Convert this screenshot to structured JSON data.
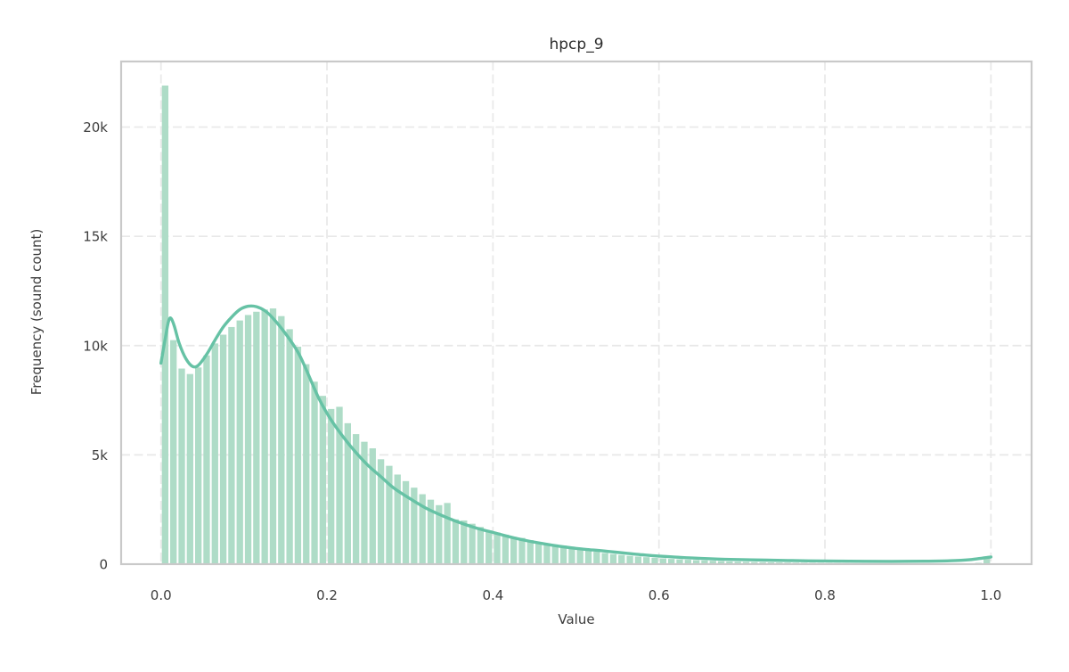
{
  "figure": {
    "background": "#ffffff"
  },
  "chart_data": {
    "type": "histogram",
    "title": "hpcp_9",
    "xlabel": "Value",
    "ylabel": "Frequency (sound count)",
    "legend": "none",
    "grid": {
      "visible": true,
      "style": "dashed"
    },
    "xlim": [
      -0.048,
      1.049
    ],
    "ylim": [
      0,
      23000
    ],
    "x_ticks": {
      "values": [
        0.0,
        0.2,
        0.4,
        0.6,
        0.8,
        1.0
      ],
      "labels": [
        "0.0",
        "0.2",
        "0.4",
        "0.6",
        "0.8",
        "1.0"
      ]
    },
    "y_ticks": {
      "values": [
        0,
        5000,
        10000,
        15000,
        20000
      ],
      "labels": [
        "0",
        "5k",
        "10k",
        "15k",
        "20k"
      ]
    },
    "histogram": {
      "bin_start": 0.0,
      "bin_width": 0.01,
      "counts": [
        21900,
        10250,
        8950,
        8700,
        9000,
        9550,
        10100,
        10500,
        10850,
        11150,
        11400,
        11550,
        11650,
        11700,
        11350,
        10750,
        9950,
        9150,
        8350,
        7700,
        7100,
        7200,
        6450,
        5950,
        5600,
        5300,
        4800,
        4500,
        4100,
        3800,
        3500,
        3200,
        2950,
        2700,
        2800,
        2050,
        2000,
        1850,
        1700,
        1550,
        1450,
        1350,
        1250,
        1200,
        1100,
        1000,
        950,
        900,
        850,
        800,
        720,
        640,
        570,
        510,
        460,
        420,
        380,
        350,
        320,
        290,
        265,
        240,
        220,
        200,
        185,
        170,
        155,
        140,
        125,
        115,
        105,
        95,
        88,
        82,
        76,
        70,
        65,
        61,
        57,
        53,
        50,
        47,
        44,
        42,
        40,
        38,
        36,
        35,
        34,
        33,
        32,
        31,
        30,
        30,
        30,
        30,
        32,
        35,
        60,
        300
      ]
    },
    "kde": {
      "points": [
        [
          0.0,
          9200
        ],
        [
          0.005,
          10300
        ],
        [
          0.009,
          11100
        ],
        [
          0.012,
          11250
        ],
        [
          0.016,
          10900
        ],
        [
          0.022,
          10100
        ],
        [
          0.03,
          9400
        ],
        [
          0.038,
          9050
        ],
        [
          0.045,
          9100
        ],
        [
          0.055,
          9600
        ],
        [
          0.065,
          10250
        ],
        [
          0.075,
          10850
        ],
        [
          0.085,
          11300
        ],
        [
          0.095,
          11650
        ],
        [
          0.105,
          11800
        ],
        [
          0.115,
          11780
        ],
        [
          0.125,
          11600
        ],
        [
          0.135,
          11250
        ],
        [
          0.15,
          10550
        ],
        [
          0.165,
          9700
        ],
        [
          0.175,
          8900
        ],
        [
          0.19,
          7600
        ],
        [
          0.205,
          6600
        ],
        [
          0.22,
          5800
        ],
        [
          0.235,
          5100
        ],
        [
          0.25,
          4500
        ],
        [
          0.265,
          4000
        ],
        [
          0.28,
          3500
        ],
        [
          0.3,
          3000
        ],
        [
          0.32,
          2550
        ],
        [
          0.34,
          2200
        ],
        [
          0.36,
          1900
        ],
        [
          0.38,
          1650
        ],
        [
          0.4,
          1450
        ],
        [
          0.42,
          1250
        ],
        [
          0.44,
          1080
        ],
        [
          0.46,
          940
        ],
        [
          0.48,
          820
        ],
        [
          0.5,
          720
        ],
        [
          0.52,
          650
        ],
        [
          0.54,
          580
        ],
        [
          0.56,
          500
        ],
        [
          0.58,
          430
        ],
        [
          0.6,
          370
        ],
        [
          0.64,
          280
        ],
        [
          0.68,
          220
        ],
        [
          0.73,
          185
        ],
        [
          0.78,
          150
        ],
        [
          0.83,
          135
        ],
        [
          0.88,
          128
        ],
        [
          0.92,
          135
        ],
        [
          0.95,
          155
        ],
        [
          0.975,
          210
        ],
        [
          1.0,
          330
        ]
      ]
    },
    "colors": {
      "bar_fill": "#aedcc7",
      "kde_line": "#66c2a5",
      "grid": "#e8e8e8",
      "spine": "#c9c9c9",
      "text": "#3d3d3d",
      "title_text": "#2d2d2d"
    }
  }
}
